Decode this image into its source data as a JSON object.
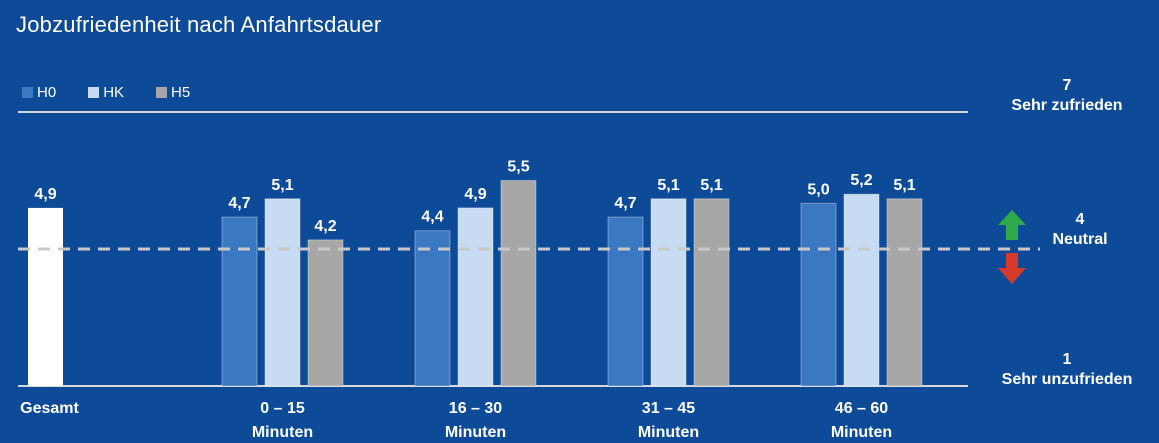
{
  "title": "Jobzufriedenheit nach Anfahrtsdauer",
  "colors": {
    "background": "#0d4a97",
    "H0": "#3b78c2",
    "HK": "#c7dcf2",
    "H5": "#a7a7a7",
    "gesamt": "#ffffff",
    "up_arrow": "#2eaa4a",
    "down_arrow": "#d63a2a"
  },
  "scale": {
    "top_value": "7",
    "top_label": "Sehr zufrieden",
    "mid_value": "4",
    "mid_label": "Neutral",
    "bottom_value": "1",
    "bottom_label": "Sehr unzufrieden"
  },
  "chart_data": {
    "type": "bar",
    "title": "Jobzufriedenheit nach Anfahrtsdauer",
    "ylim": [
      1,
      7
    ],
    "reference_line": 4,
    "legend": [
      "H0",
      "HK",
      "H5"
    ],
    "legend_position": "top-left",
    "gesamt": {
      "label": "Gesamt",
      "value": 4.9,
      "value_label": "4,9"
    },
    "categories": [
      {
        "line1": "0 – 15",
        "line2": "Minuten"
      },
      {
        "line1": "16 – 30",
        "line2": "Minuten"
      },
      {
        "line1": "31 – 45",
        "line2": "Minuten"
      },
      {
        "line1": "46 – 60",
        "line2": "Minuten"
      }
    ],
    "series": [
      {
        "name": "H0",
        "values": [
          4.7,
          4.4,
          4.7,
          5.0
        ],
        "value_labels": [
          "4,7",
          "4,4",
          "4,7",
          "5,0"
        ]
      },
      {
        "name": "HK",
        "values": [
          5.1,
          4.9,
          5.1,
          5.2
        ],
        "value_labels": [
          "5,1",
          "4,9",
          "5,1",
          "5,2"
        ]
      },
      {
        "name": "H5",
        "values": [
          4.2,
          5.5,
          5.1,
          5.1
        ],
        "value_labels": [
          "4,2",
          "5,5",
          "5,1",
          "5,1"
        ]
      }
    ]
  }
}
